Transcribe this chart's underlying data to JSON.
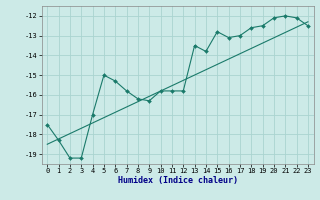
{
  "title": "",
  "xlabel": "Humidex (Indice chaleur)",
  "ylabel": "",
  "background_color": "#cceae7",
  "grid_color": "#aad4d0",
  "line_color": "#1a7a6a",
  "xlim": [
    -0.5,
    23.5
  ],
  "ylim": [
    -19.5,
    -11.5
  ],
  "xticks": [
    0,
    1,
    2,
    3,
    4,
    5,
    6,
    7,
    8,
    9,
    10,
    11,
    12,
    13,
    14,
    15,
    16,
    17,
    18,
    19,
    20,
    21,
    22,
    23
  ],
  "yticks": [
    -19,
    -18,
    -17,
    -16,
    -15,
    -14,
    -13,
    -12
  ],
  "curve1_x": [
    0,
    1,
    2,
    3,
    4,
    5,
    6,
    7,
    8,
    9,
    10,
    11,
    12,
    13,
    14,
    15,
    16,
    17,
    18,
    19,
    20,
    21,
    22,
    23
  ],
  "curve1_y": [
    -17.5,
    -18.3,
    -19.2,
    -19.2,
    -17.0,
    -15.0,
    -15.3,
    -15.8,
    -16.2,
    -16.3,
    -15.8,
    -15.8,
    -15.8,
    -13.5,
    -13.8,
    -12.8,
    -13.1,
    -13.0,
    -12.6,
    -12.5,
    -12.1,
    -12.0,
    -12.1,
    -12.5
  ],
  "curve2_x": [
    0,
    23
  ],
  "curve2_y": [
    -18.5,
    -12.3
  ],
  "xlabel_fontsize": 6,
  "xlabel_color": "#000088",
  "tick_fontsize": 5,
  "marker_size": 2.0
}
